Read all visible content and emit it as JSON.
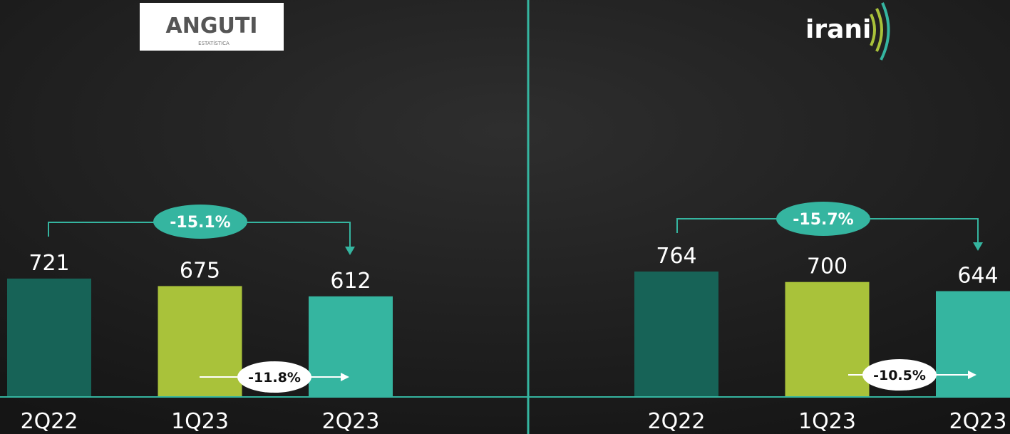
{
  "chart_data": [
    {
      "type": "bar",
      "logo": "ANGUTI",
      "logo_subtitle": "ESTATÍSTICA",
      "categories": [
        "2Q22",
        "1Q23",
        "2Q23"
      ],
      "values": [
        721,
        675,
        612
      ],
      "colors": [
        "#176357",
        "#a9c23a",
        "#35b5a0"
      ],
      "annotations": [
        "-15.1%",
        "-11.8%"
      ]
    },
    {
      "type": "bar",
      "logo": "irani",
      "categories": [
        "2Q22",
        "1Q23",
        "2Q23"
      ],
      "values": [
        764,
        700,
        644
      ],
      "colors": [
        "#176357",
        "#a9c23a",
        "#35b5a0"
      ],
      "annotations": [
        "-15.7%",
        "-10.5%"
      ]
    }
  ]
}
